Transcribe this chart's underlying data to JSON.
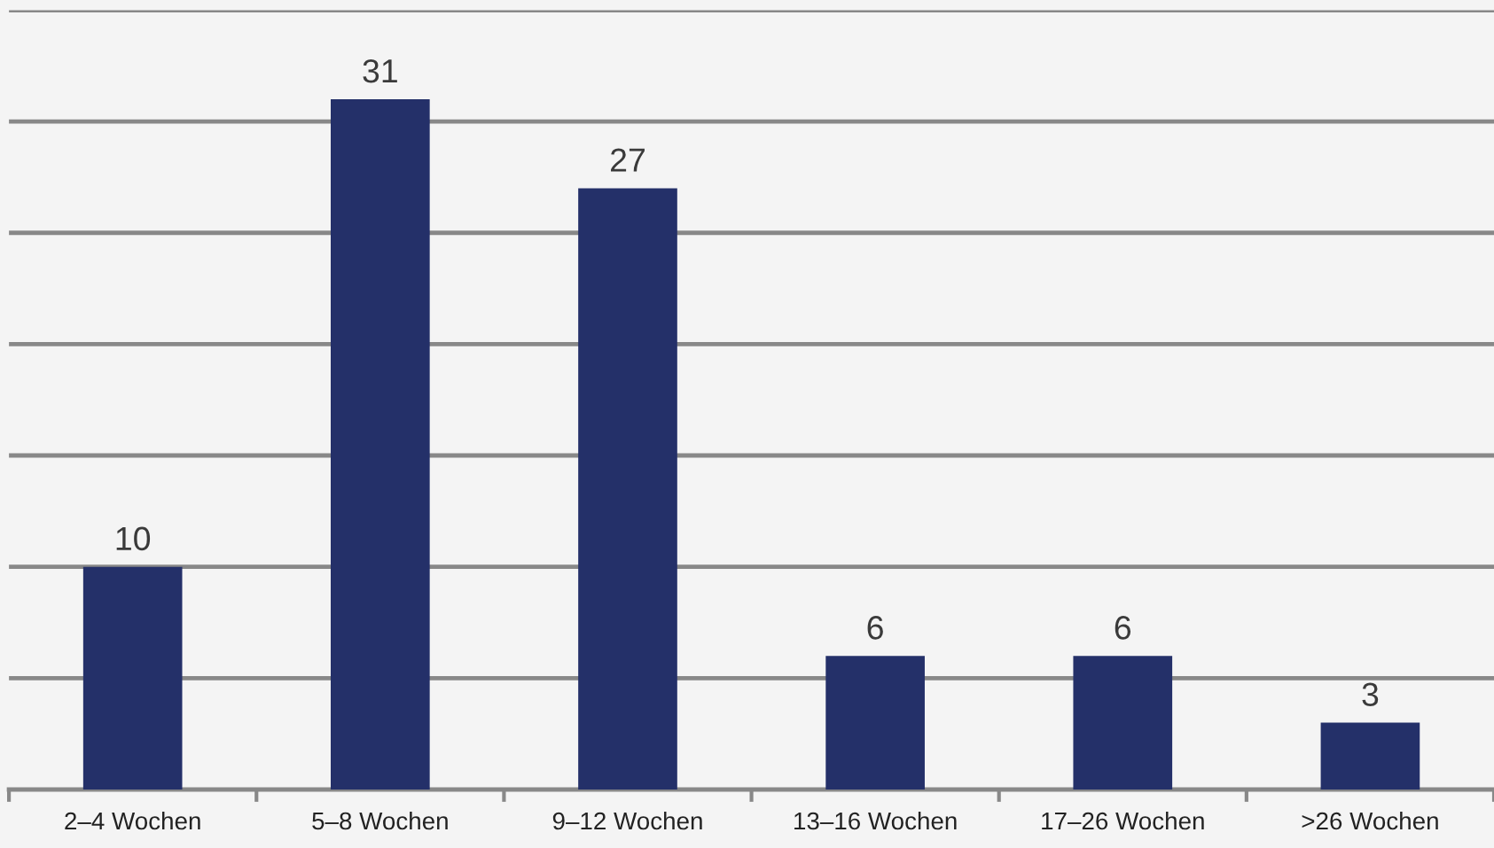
{
  "chart_data": {
    "type": "bar",
    "categories": [
      "2–4 Wochen",
      "5–8 Wochen",
      "9–12 Wochen",
      "13–16 Wochen",
      "17–26 Wochen",
      ">26 Wochen"
    ],
    "values": [
      10,
      31,
      27,
      6,
      6,
      3
    ],
    "color": "#243069",
    "data_labels": true,
    "ylim": [
      0,
      35
    ],
    "yticks": [
      {
        "value": 5,
        "label": null
      },
      {
        "value": 10,
        "label": null
      },
      {
        "value": 15,
        "label": null
      },
      {
        "value": 20,
        "label": null
      },
      {
        "value": 25,
        "label": null
      },
      {
        "value": 30,
        "label": null
      },
      {
        "value": 35,
        "label": null
      }
    ],
    "tick_labels": "x",
    "grid": "y",
    "legend": false
  }
}
